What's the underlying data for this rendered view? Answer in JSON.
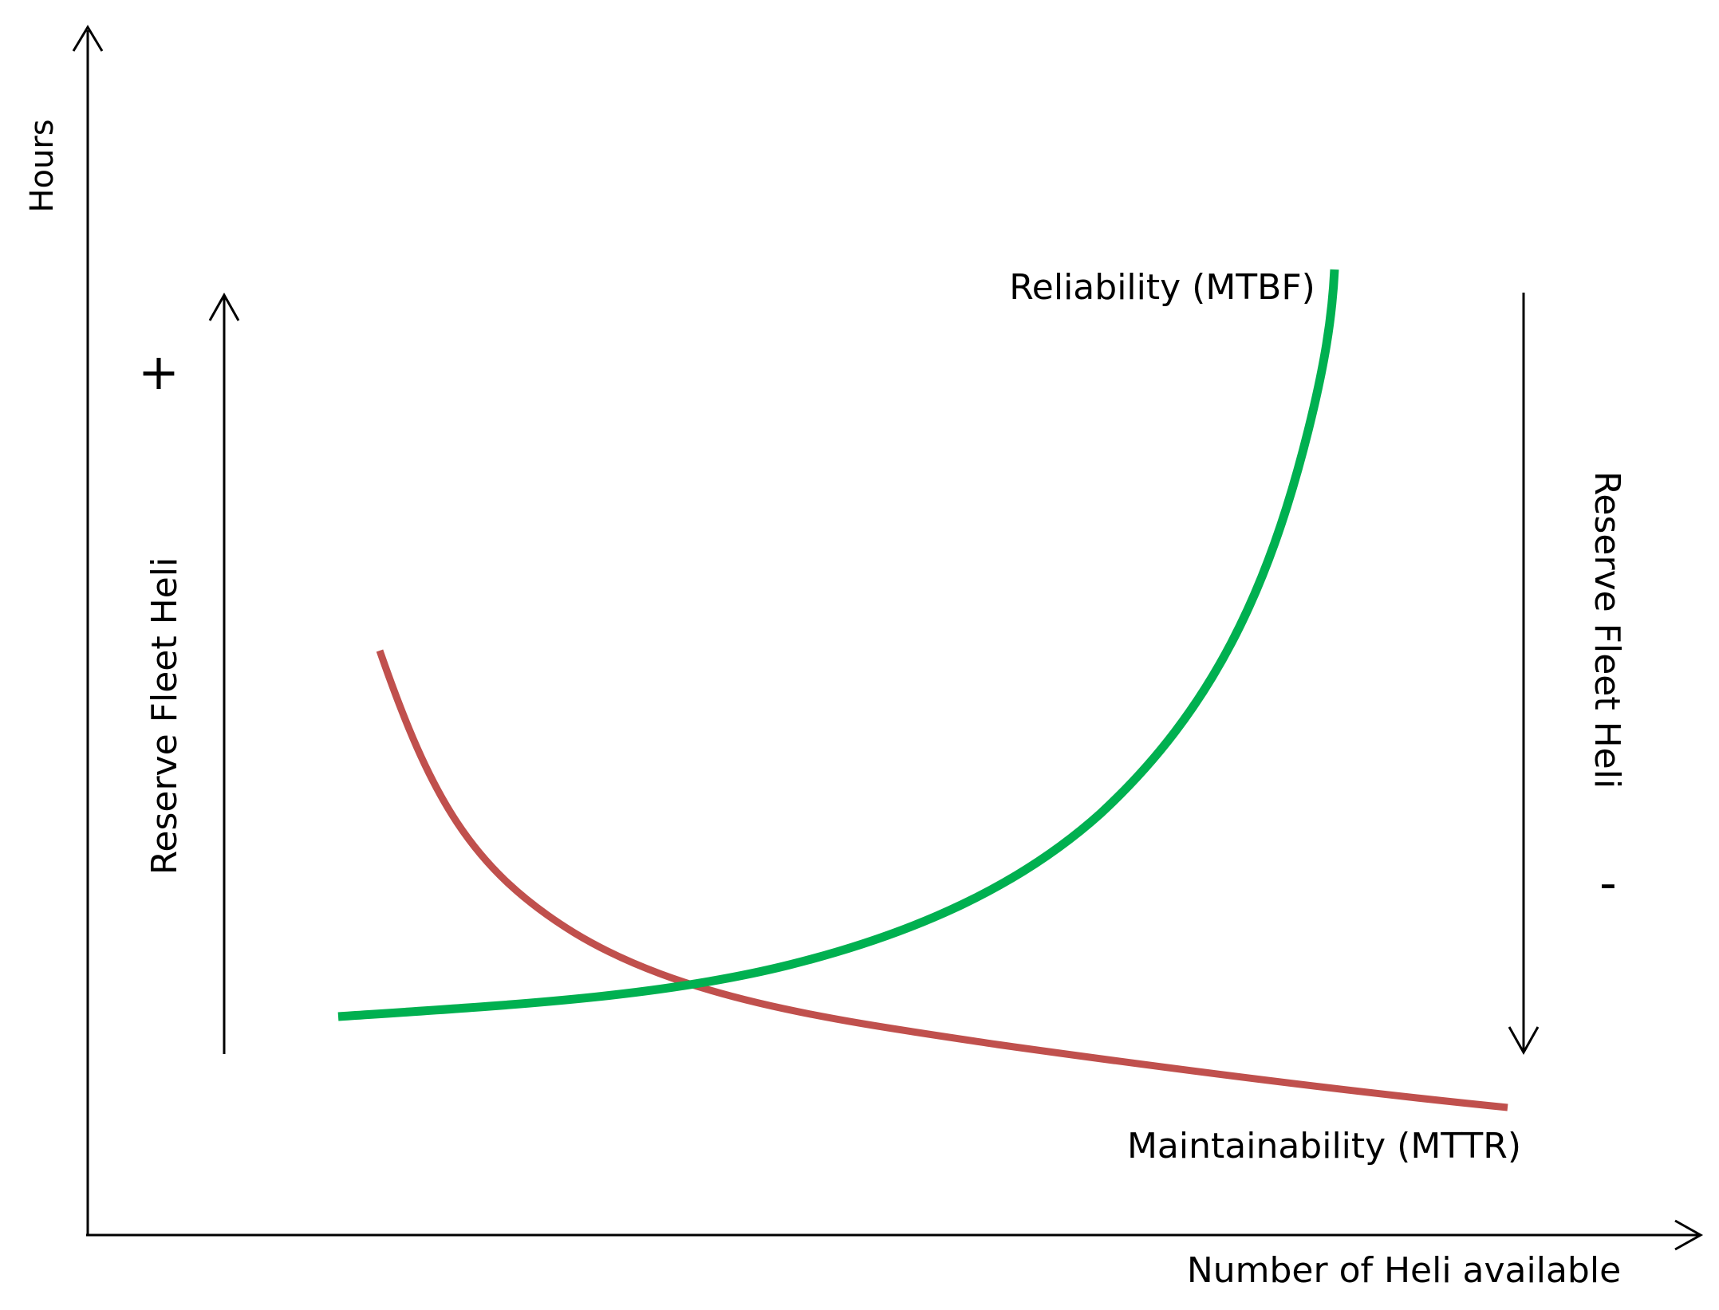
{
  "axes": {
    "y_label": "Hours",
    "x_label": "Number of Heli available"
  },
  "curves": {
    "reliability": {
      "label": "Reliability (MTBF)",
      "color": "#00b050"
    },
    "maintainability": {
      "label": "Maintainability (MTTR)",
      "color": "#c0504d"
    }
  },
  "left_indicator": {
    "label": "Reserve Fleet Heli",
    "sign": "+",
    "direction": "up"
  },
  "right_indicator": {
    "label": "Reserve Fleet Heli",
    "sign": "-",
    "direction": "down"
  },
  "colors": {
    "axis": "#000000",
    "background": "#ffffff"
  }
}
